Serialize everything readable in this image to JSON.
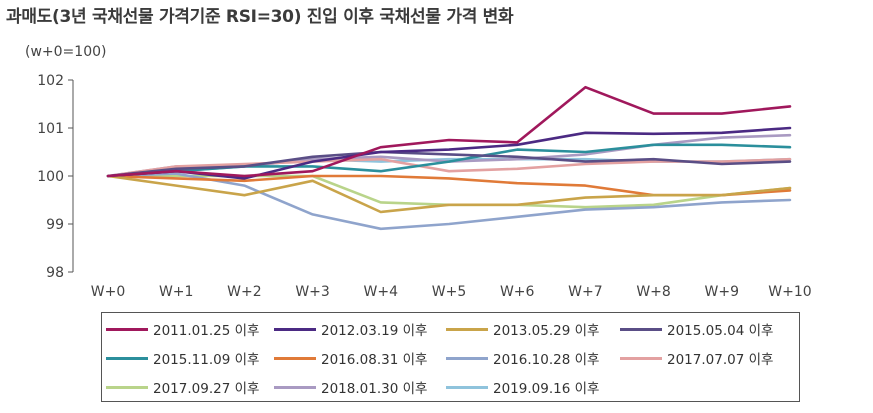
{
  "title": "과매도(3년 국채선물 가격기준 RSI=30) 진입 이후 국채선물 가격 변화",
  "chart_data": {
    "type": "line",
    "title": "과매도(3년 국채선물 가격기준 RSI=30) 진입 이후 국채선물 가격 변화",
    "ylabel": "(w+0=100)",
    "xlabel": "",
    "ylim": [
      98,
      102
    ],
    "yticks": [
      98,
      99,
      100,
      101,
      102
    ],
    "categories": [
      "W+0",
      "W+1",
      "W+2",
      "W+3",
      "W+4",
      "W+5",
      "W+6",
      "W+7",
      "W+8",
      "W+9",
      "W+10"
    ],
    "grid": false,
    "legend_position": "bottom",
    "series": [
      {
        "name": "2011.01.25 이후",
        "color": "#a0185c",
        "values": [
          100,
          100.1,
          100.0,
          100.1,
          100.6,
          100.75,
          100.7,
          101.85,
          101.3,
          101.3,
          101.45
        ]
      },
      {
        "name": "2012.03.19 이후",
        "color": "#4b2a83",
        "values": [
          100,
          100.1,
          99.95,
          100.3,
          100.5,
          100.55,
          100.65,
          100.9,
          100.88,
          100.9,
          101.0
        ]
      },
      {
        "name": "2013.05.29 이후",
        "color": "#c9a44a",
        "values": [
          100,
          99.8,
          99.6,
          99.9,
          99.25,
          99.4,
          99.4,
          99.55,
          99.6,
          99.6,
          99.75
        ]
      },
      {
        "name": "2015.05.04 이후",
        "color": "#5a4e86",
        "values": [
          100,
          100.15,
          100.2,
          100.4,
          100.5,
          100.45,
          100.4,
          100.3,
          100.35,
          100.25,
          100.3
        ]
      },
      {
        "name": "2015.11.09 이후",
        "color": "#2b8f9c",
        "values": [
          100,
          100.1,
          100.2,
          100.2,
          100.1,
          100.3,
          100.55,
          100.5,
          100.65,
          100.65,
          100.6
        ]
      },
      {
        "name": "2016.08.31 이후",
        "color": "#e07a38",
        "values": [
          100,
          99.95,
          99.9,
          100.0,
          100.0,
          99.95,
          99.85,
          99.8,
          99.6,
          99.6,
          99.7
        ]
      },
      {
        "name": "2016.10.28 이후",
        "color": "#8fa4cc",
        "values": [
          100,
          100.05,
          99.8,
          99.2,
          98.9,
          99.0,
          99.15,
          99.3,
          99.35,
          99.45,
          99.5
        ]
      },
      {
        "name": "2017.07.07 이후",
        "color": "#e3a1a1",
        "values": [
          100,
          100.2,
          100.25,
          100.3,
          100.35,
          100.1,
          100.15,
          100.25,
          100.3,
          100.3,
          100.35
        ]
      },
      {
        "name": "2017.09.27 이후",
        "color": "#b9d48a",
        "values": [
          100,
          100.0,
          100.0,
          100.0,
          99.45,
          99.4,
          99.4,
          99.35,
          99.4,
          99.6,
          99.75
        ]
      },
      {
        "name": "2018.01.30 이후",
        "color": "#a99ac2",
        "values": [
          100,
          100.2,
          100.2,
          100.35,
          100.4,
          100.3,
          100.35,
          100.45,
          100.65,
          100.8,
          100.85
        ]
      },
      {
        "name": "2019.09.16 이후",
        "color": "#8fc3dc",
        "values": [
          100,
          100.1,
          100.2,
          100.35,
          100.3,
          100.35,
          100.35,
          100.35,
          100.3,
          100.3,
          100.35
        ]
      }
    ]
  }
}
